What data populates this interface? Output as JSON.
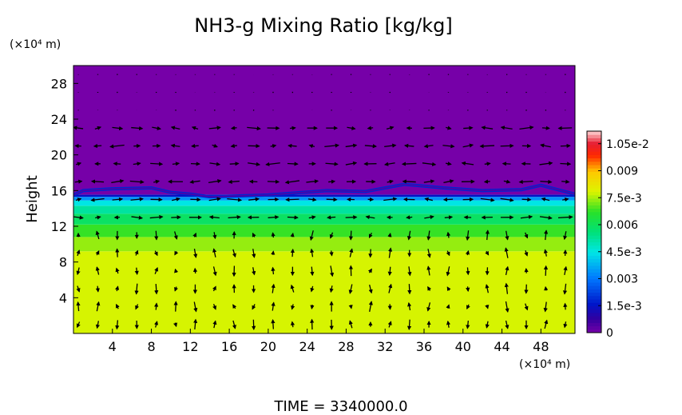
{
  "chart_data": {
    "type": "heatmap",
    "title": "NH3-g Mixing Ratio [kg/kg]",
    "xlabel": "",
    "ylabel": "Height",
    "x_unit_label": "(×10⁴ m)",
    "y_unit_label": "(×10⁴ m)",
    "xlim": [
      0,
      51.5
    ],
    "ylim": [
      0,
      30
    ],
    "x_ticks": [
      4,
      8,
      12,
      16,
      20,
      24,
      28,
      32,
      36,
      40,
      44,
      48
    ],
    "y_ticks": [
      4,
      8,
      12,
      16,
      20,
      24,
      28
    ],
    "colorbar": {
      "min": 0,
      "max": 0.0112,
      "tick_values": [
        0,
        0.0015,
        0.003,
        0.0045,
        0.006,
        0.0075,
        0.009,
        0.0105
      ],
      "tick_labels": [
        "0",
        "1.5e-3",
        "0.003",
        "4.5e-3",
        "0.006",
        "7.5e-3",
        "0.009",
        "1.05e-2"
      ]
    },
    "field_bands": [
      {
        "y_from": 0,
        "y_to": 9.2,
        "value": 0.0078
      },
      {
        "y_from": 9.2,
        "y_to": 10.8,
        "value": 0.0074
      },
      {
        "y_from": 10.8,
        "y_to": 12.2,
        "value": 0.0068
      },
      {
        "y_from": 12.2,
        "y_to": 13.4,
        "value": 0.0059
      },
      {
        "y_from": 13.4,
        "y_to": 14.3,
        "value": 0.0052
      },
      {
        "y_from": 14.3,
        "y_to": 14.9,
        "value": 0.0045
      },
      {
        "y_from": 14.9,
        "y_to": 15.3,
        "value": 0.0034
      },
      {
        "y_from": 15.3,
        "y_to": 15.55,
        "value": 0.0015
      },
      {
        "y_from": 15.55,
        "y_to": 30,
        "value": 0
      }
    ],
    "plume_top": [
      [
        0,
        15.5
      ],
      [
        1,
        16.0
      ],
      [
        4,
        16.2
      ],
      [
        8,
        16.3
      ],
      [
        10,
        15.8
      ],
      [
        12,
        15.6
      ],
      [
        14,
        15.3
      ],
      [
        20,
        15.5
      ],
      [
        26,
        16.0
      ],
      [
        30,
        15.9
      ],
      [
        34,
        16.7
      ],
      [
        38,
        16.3
      ],
      [
        42,
        16.0
      ],
      [
        46,
        16.1
      ],
      [
        48,
        16.6
      ],
      [
        51.5,
        15.6
      ]
    ],
    "wind_columns": [
      0,
      2,
      4,
      6,
      8,
      10,
      12,
      14,
      16,
      18,
      20,
      22,
      24,
      26,
      28,
      30,
      32,
      34,
      36,
      38,
      40,
      42,
      44,
      46,
      48,
      50
    ],
    "wind_rows": [
      1,
      3,
      5,
      7,
      9,
      11,
      13,
      15,
      17,
      19,
      21,
      23,
      25,
      27,
      29
    ]
  },
  "footer": {
    "time_label": "TIME  =  3340000.0"
  }
}
